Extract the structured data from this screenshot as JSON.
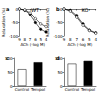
{
  "chart_data": [
    {
      "type": "line",
      "annotation": "a",
      "title": "WT",
      "xlabel": "ACh (-log M)",
      "ylabel": "Relaxation (%)",
      "x": [
        9,
        8,
        7,
        6,
        5,
        4
      ],
      "xlim": [
        9,
        4
      ],
      "xticks": [
        9,
        8,
        7,
        6,
        5,
        4
      ],
      "ylim": [
        -100,
        0
      ],
      "yticks": [
        -100,
        -50,
        0
      ],
      "series": [
        {
          "color": "#000000",
          "marker": "filled",
          "values": [
            0,
            -5,
            -20,
            -50,
            -75,
            -85
          ]
        },
        {
          "color": "#000000",
          "marker": "open",
          "values": [
            0,
            -3,
            -15,
            -35,
            -55,
            -65
          ]
        }
      ]
    },
    {
      "type": "line",
      "annotation": "b",
      "title": "KO",
      "xlabel": "ACh (-log M)",
      "ylabel": "Relaxation (%)",
      "x": [
        9,
        8,
        7,
        6,
        5,
        4
      ],
      "xlim": [
        9,
        4
      ],
      "xticks": [
        9,
        8,
        7,
        6,
        5,
        4
      ],
      "ylim": [
        -100,
        0
      ],
      "yticks": [
        -100,
        -50,
        0
      ],
      "series": [
        {
          "color": "#000000",
          "marker": "filled",
          "values": [
            0,
            -5,
            -25,
            -55,
            -78,
            -88
          ]
        },
        {
          "color": "#000000",
          "marker": "open",
          "values": [
            0,
            -8,
            -30,
            -60,
            -80,
            -90
          ]
        }
      ]
    },
    {
      "type": "bar",
      "annotation": "c",
      "categories": [
        "Control",
        "Tempol"
      ],
      "values": [
        60,
        85
      ],
      "colors": [
        "#ffffff",
        "#000000"
      ],
      "ylim": [
        0,
        100
      ],
      "yticks": [
        0,
        50,
        100
      ]
    },
    {
      "type": "bar",
      "annotation": "d",
      "categories": [
        "Control",
        "Tempol"
      ],
      "values": [
        80,
        90
      ],
      "colors": [
        "#ffffff",
        "#000000"
      ],
      "ylim": [
        0,
        100
      ],
      "yticks": [
        0,
        50,
        100
      ]
    }
  ]
}
